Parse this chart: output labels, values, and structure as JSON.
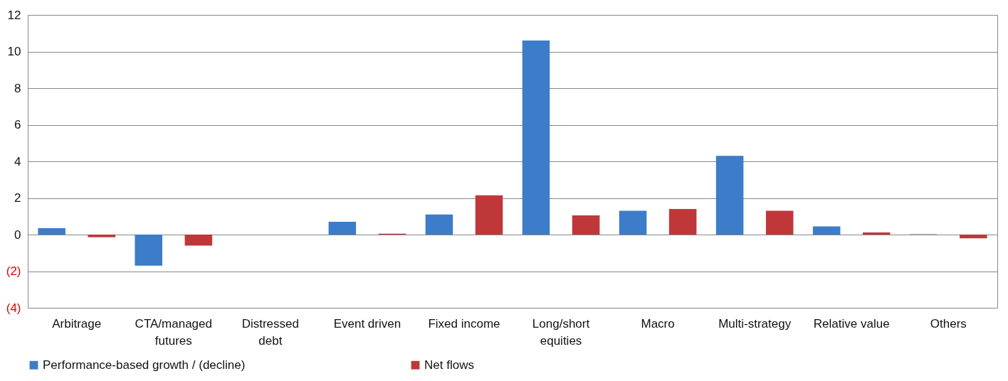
{
  "chart_data": {
    "type": "bar",
    "categories": [
      "Arbitrage",
      "CTA/managed futures",
      "Distressed debt",
      "Event driven",
      "Fixed income",
      "Long/short equities",
      "Macro",
      "Multi-strategy",
      "Relative value",
      "Others"
    ],
    "series": [
      {
        "name": "Performance-based growth / (decline)",
        "color": "#3d7cc9",
        "values": [
          0.35,
          -1.7,
          0,
          0.7,
          1.1,
          10.6,
          1.3,
          4.3,
          0.45,
          0.02
        ]
      },
      {
        "name": "Net flows",
        "color": "#c0373a",
        "values": [
          -0.15,
          -0.6,
          0,
          0.05,
          2.15,
          1.05,
          1.4,
          1.3,
          0.12,
          -0.2
        ]
      }
    ],
    "ylim": [
      -4,
      12
    ],
    "yticks": [
      {
        "value": -4,
        "label": "(4)"
      },
      {
        "value": -2,
        "label": "(2)"
      },
      0,
      2,
      4,
      6,
      8,
      10,
      12
    ],
    "grid": "y",
    "legend": "bottom"
  }
}
